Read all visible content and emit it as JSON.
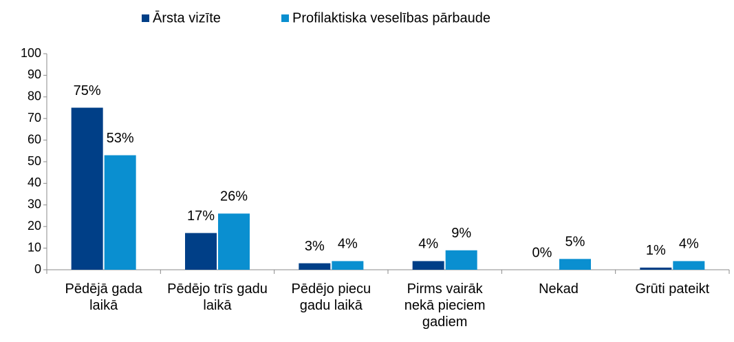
{
  "chart_data": {
    "type": "bar",
    "categories": [
      "Pēdējā gada laikā",
      "Pēdējo trīs gadu laikā",
      "Pēdējo piecu gadu laikā",
      "Pirms vairāk nekā pieciem gadiem",
      "Nekad",
      "Grūti pateikt"
    ],
    "series": [
      {
        "name": "Ārsta vizīte",
        "color": "#003f87",
        "values": [
          75,
          17,
          3,
          4,
          0,
          1
        ],
        "value_labels": [
          "75%",
          "17%",
          "3%",
          "4%",
          "0%",
          "1%"
        ]
      },
      {
        "name": "Profilaktiska veselības pārbaude",
        "color": "#0a8fd0",
        "values": [
          53,
          26,
          4,
          9,
          5,
          4
        ],
        "value_labels": [
          "53%",
          "26%",
          "4%",
          "9%",
          "5%",
          "4%"
        ]
      }
    ],
    "ylim": [
      0,
      100
    ],
    "yticks": [
      0,
      10,
      20,
      30,
      40,
      50,
      60,
      70,
      80,
      90,
      100
    ],
    "grid": false,
    "legend": "top"
  }
}
